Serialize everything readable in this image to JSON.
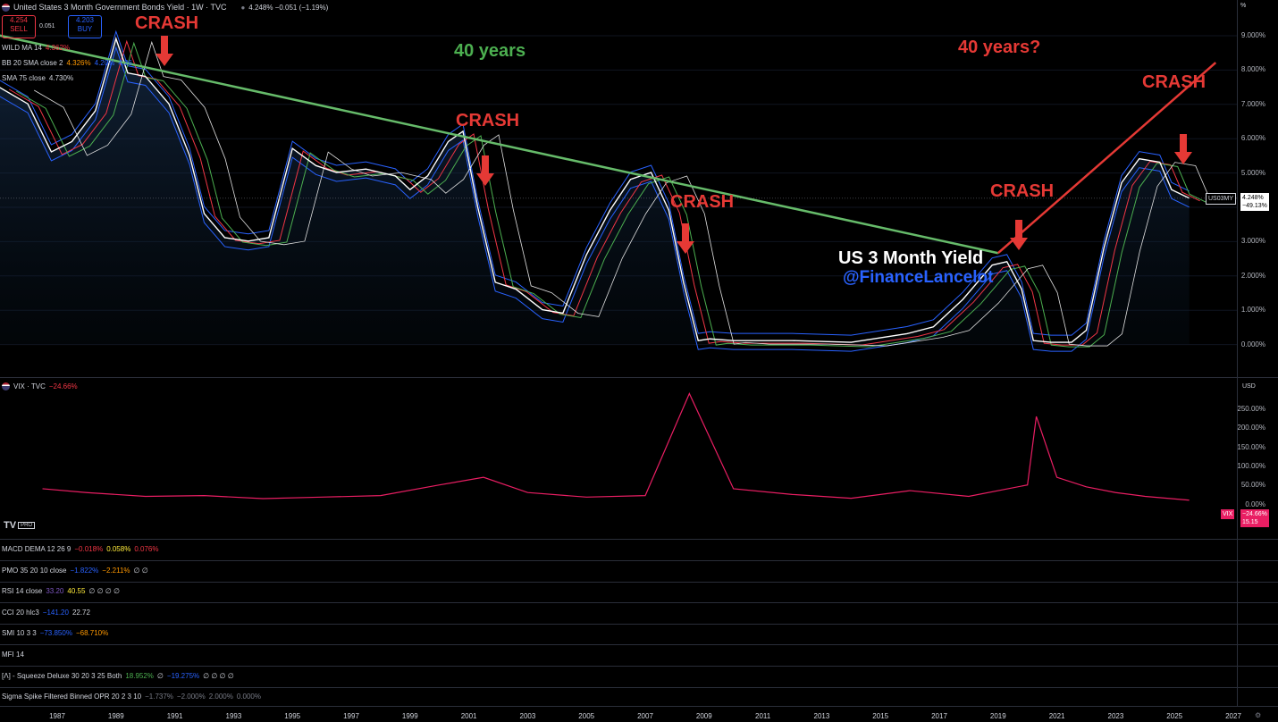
{
  "header": {
    "title": "United States 3 Month Government Bonds Yield · 1W · TVC",
    "price_change": "4.248%  −0.051 (−1.19%)",
    "sell_price": "4.254",
    "sell_label": "SELL",
    "spread": "0.051",
    "buy_price": "4.203",
    "buy_label": "BUY",
    "percent_button": "%"
  },
  "main_legend": [
    {
      "name": "WILD MA 14",
      "values": [
        {
          "text": "4.362%",
          "color": "#f23645"
        }
      ]
    },
    {
      "name": "BB 20 SMA close 2",
      "values": [
        {
          "text": "4.326%",
          "color": "#ff9800"
        },
        {
          "text": "4.20%",
          "color": "#2962ff"
        },
        {
          "text": "4.26",
          "color": "#2962ff"
        }
      ]
    },
    {
      "name": "SMA 75 close",
      "values": [
        {
          "text": "4.730%",
          "color": "#d1d4dc"
        }
      ]
    }
  ],
  "main_axis": [
    "9.000%",
    "8.000%",
    "7.000%",
    "6.000%",
    "5.000%",
    "4.000%",
    "3.000%",
    "2.000%",
    "1.000%",
    "0.000%"
  ],
  "main_price_tag": {
    "symbol": "US03MY",
    "value": "4.248%",
    "change": "−49.13%"
  },
  "annotations": {
    "crash": "CRASH",
    "forty_years": "40 years",
    "forty_years_q": "40 years?",
    "chart_title": "US 3 Month Yield",
    "handle": "@FinanceLancelot"
  },
  "vix": {
    "legend_name": "VIX · TVC",
    "legend_value": "−24.66%",
    "axis": [
      "250.00%",
      "200.00%",
      "150.00%",
      "100.00%",
      "50.00%",
      "0.00%"
    ],
    "currency": "USD",
    "tag_name": "VIX",
    "tag_change": "−24.66%",
    "tag_price": "15.15",
    "logo_text": "PRO"
  },
  "indicators": [
    {
      "name": "MACD DEMA 12 26 9",
      "values": [
        {
          "text": "−0.018%",
          "color": "#f23645"
        },
        {
          "text": "0.058%",
          "color": "#ffeb3b"
        },
        {
          "text": "0.076%",
          "color": "#f23645"
        }
      ]
    },
    {
      "name": "PMO 35 20 10 close",
      "values": [
        {
          "text": "−1.822%",
          "color": "#2962ff"
        },
        {
          "text": "−2.211%",
          "color": "#ff9800"
        },
        {
          "text": "∅ ∅",
          "color": "#d1d4dc"
        }
      ]
    },
    {
      "name": "RSI 14 close",
      "values": [
        {
          "text": "33.20",
          "color": "#7e57c2"
        },
        {
          "text": "40.55",
          "color": "#ffeb3b"
        },
        {
          "text": "∅ ∅ ∅ ∅",
          "color": "#d1d4dc"
        }
      ]
    },
    {
      "name": "CCI 20 hlc3",
      "values": [
        {
          "text": "−141.20",
          "color": "#2962ff"
        },
        {
          "text": "22.72",
          "color": "#d1d4dc"
        }
      ]
    },
    {
      "name": "SMI 10 3 3",
      "values": [
        {
          "text": "−73.850%",
          "color": "#2962ff"
        },
        {
          "text": "−68.710%",
          "color": "#ff9800"
        }
      ]
    },
    {
      "name": "MFI 14",
      "values": []
    },
    {
      "name": "[Λ] - Squeeze Deluxe 30 20 3 25 Both",
      "values": [
        {
          "text": "18.952%",
          "color": "#4caf50"
        },
        {
          "text": "∅",
          "color": "#d1d4dc"
        },
        {
          "text": "−19.275%",
          "color": "#2962ff"
        },
        {
          "text": "∅ ∅ ∅ ∅",
          "color": "#d1d4dc"
        }
      ]
    },
    {
      "name": "Sigma Spike Filtered Binned OPR 20 2 3 10",
      "values": [
        {
          "text": "−1.737%",
          "color": "#787b86"
        },
        {
          "text": "−2.000%",
          "color": "#787b86"
        },
        {
          "text": "2.000%",
          "color": "#787b86"
        },
        {
          "text": "0.000%",
          "color": "#787b86"
        }
      ]
    }
  ],
  "time_axis": [
    "1987",
    "1989",
    "1991",
    "1993",
    "1995",
    "1997",
    "1999",
    "2001",
    "2003",
    "2005",
    "2007",
    "2009",
    "2011",
    "2013",
    "2015",
    "2017",
    "2019",
    "2021",
    "2023",
    "2025",
    "2027"
  ],
  "chart_data": {
    "type": "line",
    "xlabel": "",
    "ylabel": "",
    "ylim": [
      0,
      9
    ],
    "series": [
      {
        "x": [
          1985.0,
          1986.0,
          1986.8,
          1987.5,
          1988.3,
          1989.0,
          1989.4,
          1990.0,
          1990.8,
          1991.5,
          1992.0,
          1992.7,
          1993.5,
          1994.2,
          1995.0,
          1995.8,
          1996.5,
          1997.5,
          1998.5,
          1999.0,
          1999.6,
          2000.3,
          2000.8,
          2001.3,
          2001.9,
          2002.6,
          2003.5,
          2004.2,
          2005.0,
          2005.8,
          2006.5,
          2007.2,
          2007.8,
          2008.3,
          2008.8,
          2009.2,
          2010.0,
          2012.0,
          2014.0,
          2015.9,
          2016.8,
          2017.8,
          2018.8,
          2019.3,
          2019.8,
          2020.2,
          2020.8,
          2021.5,
          2022.0,
          2022.6,
          2023.2,
          2023.8,
          2024.5,
          2024.9,
          2025.5
        ],
        "values": [
          7.5,
          7.0,
          5.6,
          5.9,
          6.8,
          8.9,
          7.9,
          7.8,
          7.0,
          5.5,
          3.8,
          3.1,
          3.0,
          3.1,
          5.7,
          5.2,
          5.0,
          5.1,
          4.9,
          4.5,
          4.9,
          5.9,
          6.2,
          4.0,
          1.8,
          1.6,
          1.0,
          0.9,
          2.6,
          3.9,
          4.8,
          5.0,
          3.9,
          1.8,
          0.1,
          0.15,
          0.1,
          0.1,
          0.05,
          0.3,
          0.5,
          1.3,
          2.3,
          2.4,
          1.6,
          0.1,
          0.05,
          0.05,
          0.4,
          2.8,
          4.7,
          5.4,
          5.3,
          4.5,
          4.25
        ]
      },
      {
        "x": [
          1985.0,
          2019.0
        ],
        "values": [
          9.0,
          2.65
        ]
      },
      {
        "x": [
          2019.0,
          2026.4
        ],
        "values": [
          2.65,
          8.2
        ]
      },
      {
        "x": [
          1986.5,
          1988.0,
          1990.0,
          1992.0,
          1994.0,
          1996.0,
          1998.0,
          2000.0,
          2001.5,
          2003.0,
          2005.0,
          2007.0,
          2008.5,
          2010.0,
          2012.0,
          2014.0,
          2016.0,
          2018.0,
          2020.0,
          2020.3,
          2021.0,
          2022.0,
          2023.0,
          2024.0,
          2025.5
        ],
        "values": [
          40,
          30,
          20,
          22,
          14,
          18,
          22,
          50,
          70,
          30,
          18,
          22,
          290,
          40,
          25,
          15,
          35,
          20,
          50,
          230,
          70,
          45,
          30,
          20,
          10
        ]
      }
    ]
  }
}
